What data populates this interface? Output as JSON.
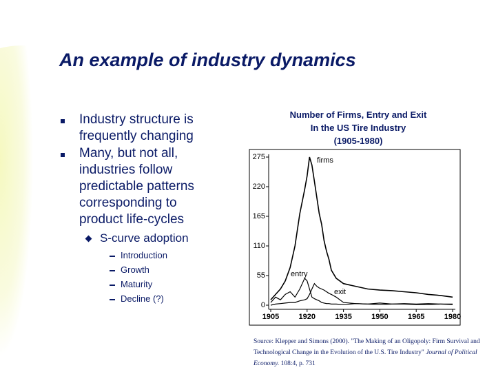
{
  "title": "An example of industry dynamics",
  "bullets": [
    "Industry structure is frequently changing",
    "Many, but not all, industries follow predictable patterns corresponding to product life-cycles"
  ],
  "sub_bullet": "S-curve adoption",
  "sub_sub_bullets": [
    "Introduction",
    "Growth",
    "Maturity",
    "Decline (?)"
  ],
  "source": [
    "Source:  Klepper and Simons (2000). \"The Making of an Oligopoly: Firm Survival and Technological Change in the Evolution of the U.S. Tire Industry\"",
    "Journal of Political Economy.",
    " 108:4, p. 731"
  ],
  "chart_data": {
    "type": "line",
    "title": [
      "Number of Firms, Entry and Exit",
      "In the US Tire Industry",
      "(1905-1980)"
    ],
    "x": [
      1905,
      1907,
      1909,
      1911,
      1913,
      1915,
      1917,
      1919,
      1920,
      1921,
      1922,
      1923,
      1924,
      1925,
      1926,
      1927,
      1928,
      1929,
      1930,
      1932,
      1935,
      1940,
      1945,
      1950,
      1955,
      1960,
      1965,
      1970,
      1975,
      1980
    ],
    "series": [
      {
        "name": "firms",
        "color": "#000000",
        "values": [
          10,
          20,
          30,
          45,
          70,
          110,
          170,
          215,
          240,
          275,
          260,
          230,
          200,
          170,
          150,
          120,
          100,
          85,
          65,
          50,
          40,
          35,
          30,
          28,
          27,
          25,
          23,
          20,
          18,
          15
        ]
      },
      {
        "name": "entry",
        "color": "#000000",
        "values": [
          5,
          15,
          10,
          20,
          25,
          15,
          30,
          50,
          45,
          30,
          15,
          12,
          10,
          8,
          5,
          4,
          3,
          3,
          2,
          2,
          1,
          3,
          2,
          1,
          2,
          2,
          1,
          1,
          2,
          2
        ]
      },
      {
        "name": "exit",
        "color": "#000000",
        "values": [
          0,
          2,
          3,
          4,
          5,
          5,
          8,
          10,
          12,
          20,
          30,
          40,
          35,
          32,
          30,
          28,
          25,
          22,
          20,
          15,
          5,
          3,
          2,
          4,
          2,
          3,
          2,
          3,
          2,
          1
        ]
      }
    ],
    "xlim": [
      1905,
      1980
    ],
    "xticks": [
      1905,
      1920,
      1935,
      1950,
      1965,
      1980
    ],
    "ylim": [
      0,
      275
    ],
    "yticks": [
      0,
      55,
      110,
      165,
      220,
      275
    ]
  }
}
